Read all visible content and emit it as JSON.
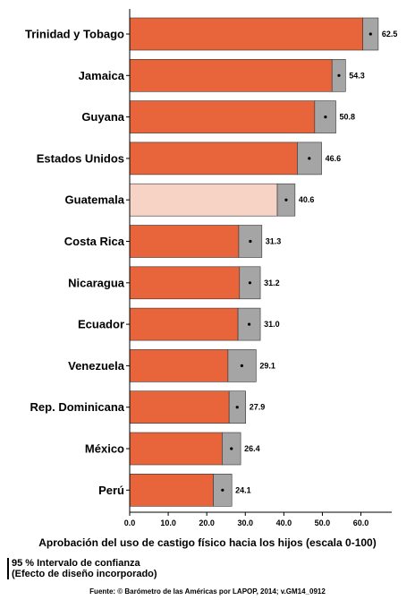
{
  "chart_data": {
    "type": "bar",
    "orientation": "horizontal",
    "categories": [
      "Trinidad y Tobago",
      "Jamaica",
      "Guyana",
      "Estados Unidos",
      "Guatemala",
      "Costa Rica",
      "Nicaragua",
      "Ecuador",
      "Venezuela",
      "Rep. Dominicana",
      "México",
      "Perú"
    ],
    "values": [
      62.5,
      54.3,
      50.8,
      46.6,
      40.6,
      31.3,
      31.2,
      31.0,
      29.1,
      27.9,
      26.4,
      24.1
    ],
    "value_labels": [
      "62.5",
      "54.3",
      "50.8",
      "46.6",
      "40.6",
      "31.3",
      "31.2",
      "31.0",
      "29.1",
      "27.9",
      "26.4",
      "24.1"
    ],
    "ci_lower": [
      60.5,
      52.5,
      48.0,
      43.5,
      38.3,
      28.3,
      28.5,
      28.1,
      25.5,
      25.8,
      24.0,
      21.7
    ],
    "ci_upper": [
      64.5,
      56.0,
      53.5,
      49.8,
      42.9,
      34.3,
      33.9,
      33.9,
      32.8,
      30.1,
      28.8,
      26.5
    ],
    "highlight": "Guatemala",
    "xlabel": "Aprobación del uso de castigo físico hacia los hijos  (escala 0-100)",
    "ylabel": "",
    "xlim": [
      0,
      68
    ],
    "xticks": [
      0,
      10,
      20,
      30,
      40,
      50,
      60
    ],
    "xtick_labels": [
      "0.0",
      "10.0",
      "20.0",
      "30.0",
      "40.0",
      "50.0",
      "60.0"
    ],
    "colors": {
      "bar": "#e8643a",
      "highlight_bar": "#f7d3c6",
      "ci": "#a5a5a5",
      "point": "#000000"
    }
  },
  "legend": {
    "ci_line1": "95 % Intervalo de confianza",
    "ci_line2": "(Efecto de diseño incorporado)"
  },
  "source": "Fuente: © Barómetro de las Américas por LAPOP, 2014; v.GM14_0912"
}
